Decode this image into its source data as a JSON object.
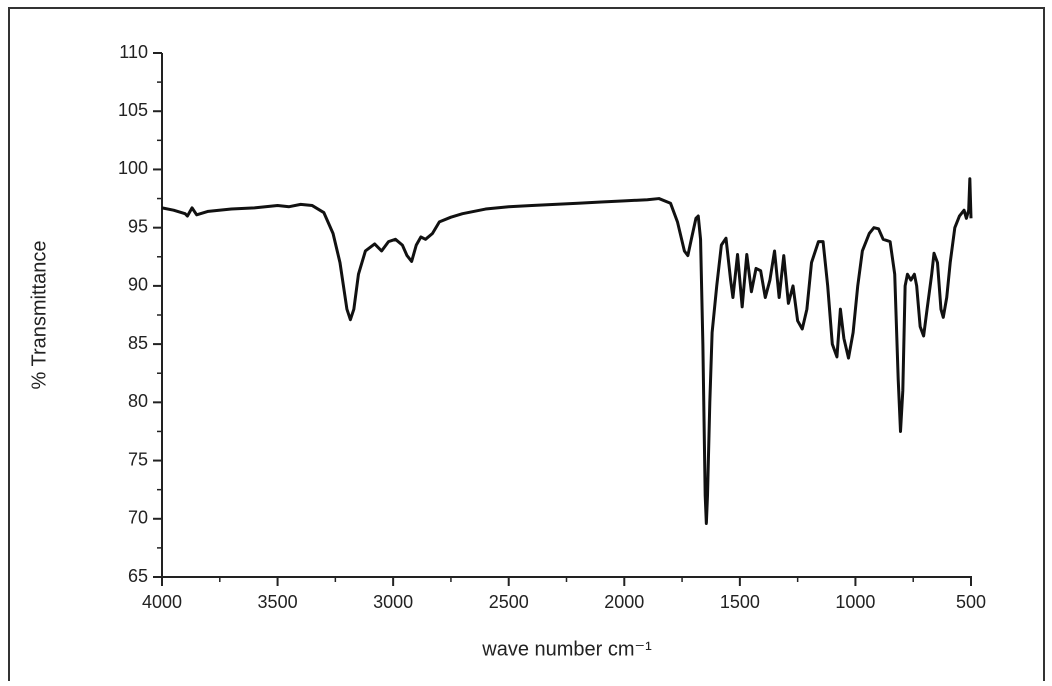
{
  "chart_data": {
    "type": "line",
    "xlabel": "wave number cm⁻¹",
    "ylabel": "% Transmittance",
    "color": "#111111",
    "xlim": [
      4000,
      500
    ],
    "xticks": [
      4000,
      3500,
      3000,
      2500,
      2000,
      1500,
      1000,
      500
    ],
    "xminorticks": [
      3750,
      3250,
      2750,
      2250,
      1750,
      1250,
      750
    ],
    "ylim": [
      65,
      110
    ],
    "yticks": [
      65,
      70,
      75,
      80,
      85,
      90,
      95,
      100,
      105,
      110
    ],
    "yminorticks": [
      67.5,
      72.5,
      77.5,
      82.5,
      87.5,
      92.5,
      97.5,
      102.5,
      107.5
    ],
    "grid": false,
    "x": [
      4000,
      3950,
      3900,
      3890,
      3870,
      3850,
      3800,
      3700,
      3600,
      3500,
      3450,
      3400,
      3350,
      3300,
      3260,
      3230,
      3200,
      3185,
      3170,
      3150,
      3120,
      3080,
      3050,
      3020,
      2990,
      2960,
      2940,
      2920,
      2900,
      2880,
      2860,
      2830,
      2800,
      2750,
      2700,
      2600,
      2500,
      2400,
      2300,
      2200,
      2100,
      2000,
      1900,
      1850,
      1800,
      1770,
      1740,
      1725,
      1710,
      1690,
      1680,
      1670,
      1660,
      1650,
      1645,
      1640,
      1630,
      1620,
      1600,
      1580,
      1560,
      1540,
      1530,
      1510,
      1490,
      1470,
      1450,
      1430,
      1410,
      1390,
      1370,
      1350,
      1330,
      1310,
      1290,
      1270,
      1250,
      1230,
      1210,
      1190,
      1160,
      1140,
      1120,
      1100,
      1080,
      1065,
      1050,
      1030,
      1010,
      990,
      970,
      940,
      920,
      900,
      880,
      850,
      830,
      815,
      805,
      795,
      785,
      775,
      760,
      745,
      735,
      720,
      705,
      690,
      670,
      660,
      645,
      630,
      620,
      605,
      590,
      570,
      550,
      530,
      520,
      510,
      505,
      500
    ],
    "values": [
      96.7,
      96.5,
      96.2,
      96.0,
      96.7,
      96.1,
      96.4,
      96.6,
      96.7,
      96.9,
      96.8,
      97.0,
      96.9,
      96.3,
      94.5,
      92,
      88,
      87.1,
      88,
      91,
      93,
      93.6,
      93.0,
      93.8,
      94.0,
      93.5,
      92.6,
      92.1,
      93.5,
      94.2,
      94.0,
      94.5,
      95.5,
      95.9,
      96.2,
      96.6,
      96.8,
      96.9,
      97.0,
      97.1,
      97.2,
      97.3,
      97.4,
      97.5,
      97.1,
      95.5,
      93,
      92.6,
      94,
      95.8,
      96.0,
      94,
      85,
      72,
      69.6,
      72,
      80,
      86,
      90,
      93.5,
      94.1,
      90.5,
      89,
      92.7,
      88.2,
      92.7,
      89.5,
      91.5,
      91.3,
      89.0,
      90.5,
      93,
      89,
      92.6,
      88.5,
      90,
      87,
      86.3,
      88,
      92,
      93.8,
      93.8,
      90,
      85,
      83.9,
      88,
      85.5,
      83.8,
      86,
      90,
      93,
      94.5,
      95,
      94.9,
      94,
      93.8,
      91,
      82,
      77.5,
      81,
      90,
      91,
      90.5,
      91,
      90,
      86.5,
      85.7,
      88,
      91,
      92.8,
      92,
      88,
      87.3,
      89,
      92,
      95,
      96,
      96.5,
      95.8,
      96.5,
      99.2,
      95.8
    ]
  }
}
